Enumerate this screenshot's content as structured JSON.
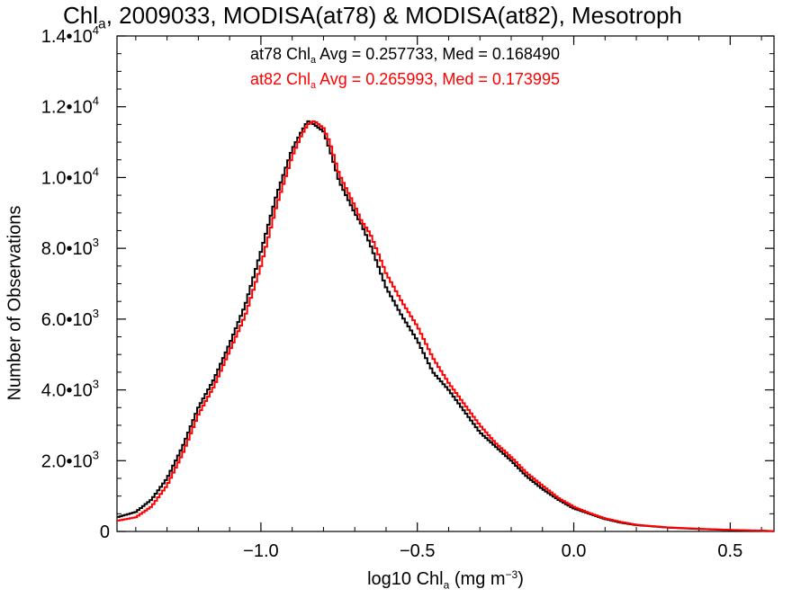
{
  "chart_data": {
    "type": "line",
    "title": {
      "prefix": "Chl",
      "sub": "a",
      "rest": ", 2009033, MODISA(at78) & MODISA(at82), Mesotroph"
    },
    "stats": [
      {
        "name": "at78",
        "color": "#000000",
        "pre": "at78 Chl",
        "sub": "a",
        "post": " Avg = 0.257733, Med = 0.168490"
      },
      {
        "name": "at82",
        "color": "#ff0000",
        "pre": "at82 Chl",
        "sub": "a",
        "post": " Avg = 0.265993, Med = 0.173995"
      }
    ],
    "xlabel": {
      "pre": "log10 Chl",
      "sub": "a",
      "mid": " (mg m",
      "sup": "−3",
      "post": ")"
    },
    "ylabel": "Number of Observations",
    "xlim": [
      -1.46,
      0.64
    ],
    "ylim": [
      0,
      14000
    ],
    "x_ticks": [
      {
        "value": -1.0,
        "label": "−1.0"
      },
      {
        "value": -0.5,
        "label": "−0.5"
      },
      {
        "value": 0.0,
        "label": "0.0"
      },
      {
        "value": 0.5,
        "label": "0.5"
      }
    ],
    "y_ticks": [
      {
        "value": 0,
        "mant": "0",
        "exp": ""
      },
      {
        "value": 2000,
        "mant": "2.0•10",
        "exp": "3"
      },
      {
        "value": 4000,
        "mant": "4.0•10",
        "exp": "3"
      },
      {
        "value": 6000,
        "mant": "6.0•10",
        "exp": "3"
      },
      {
        "value": 8000,
        "mant": "8.0•10",
        "exp": "3"
      },
      {
        "value": 10000,
        "mant": "1.0•10",
        "exp": "4"
      },
      {
        "value": 12000,
        "mant": "1.2•10",
        "exp": "4"
      },
      {
        "value": 14000,
        "mant": "1.4•10",
        "exp": "4"
      }
    ],
    "series": [
      {
        "name": "at78",
        "color": "#000000",
        "x": [
          -1.46,
          -1.4,
          -1.35,
          -1.3,
          -1.25,
          -1.2,
          -1.15,
          -1.1,
          -1.05,
          -1.0,
          -0.95,
          -0.9,
          -0.87,
          -0.85,
          -0.83,
          -0.8,
          -0.78,
          -0.75,
          -0.7,
          -0.68,
          -0.65,
          -0.6,
          -0.55,
          -0.5,
          -0.45,
          -0.4,
          -0.35,
          -0.3,
          -0.25,
          -0.2,
          -0.15,
          -0.1,
          -0.05,
          0.0,
          0.05,
          0.1,
          0.15,
          0.2,
          0.3,
          0.4,
          0.5,
          0.6,
          0.64
        ],
        "y": [
          400,
          550,
          900,
          1500,
          2400,
          3500,
          4300,
          5300,
          6400,
          7900,
          9500,
          10800,
          11300,
          11600,
          11500,
          11300,
          10800,
          9900,
          9000,
          8700,
          8100,
          6900,
          6100,
          5400,
          4500,
          4000,
          3400,
          2800,
          2400,
          2000,
          1550,
          1200,
          900,
          650,
          500,
          350,
          250,
          180,
          110,
          70,
          40,
          20,
          10
        ]
      },
      {
        "name": "at82",
        "color": "#ff0000",
        "x": [
          -1.46,
          -1.4,
          -1.35,
          -1.3,
          -1.25,
          -1.2,
          -1.15,
          -1.1,
          -1.05,
          -1.0,
          -0.95,
          -0.9,
          -0.87,
          -0.85,
          -0.83,
          -0.8,
          -0.78,
          -0.75,
          -0.7,
          -0.68,
          -0.65,
          -0.6,
          -0.55,
          -0.5,
          -0.45,
          -0.4,
          -0.35,
          -0.3,
          -0.25,
          -0.2,
          -0.15,
          -0.1,
          -0.05,
          0.0,
          0.05,
          0.1,
          0.15,
          0.2,
          0.3,
          0.4,
          0.5,
          0.6,
          0.64
        ],
        "y": [
          300,
          400,
          700,
          1300,
          2200,
          3300,
          4100,
          5100,
          6100,
          7500,
          9200,
          10600,
          11200,
          11500,
          11600,
          11400,
          11000,
          10100,
          9200,
          8800,
          8400,
          7300,
          6500,
          5800,
          4900,
          4200,
          3600,
          3000,
          2500,
          2100,
          1650,
          1300,
          950,
          700,
          520,
          370,
          270,
          190,
          115,
          75,
          45,
          22,
          10
        ]
      }
    ]
  }
}
